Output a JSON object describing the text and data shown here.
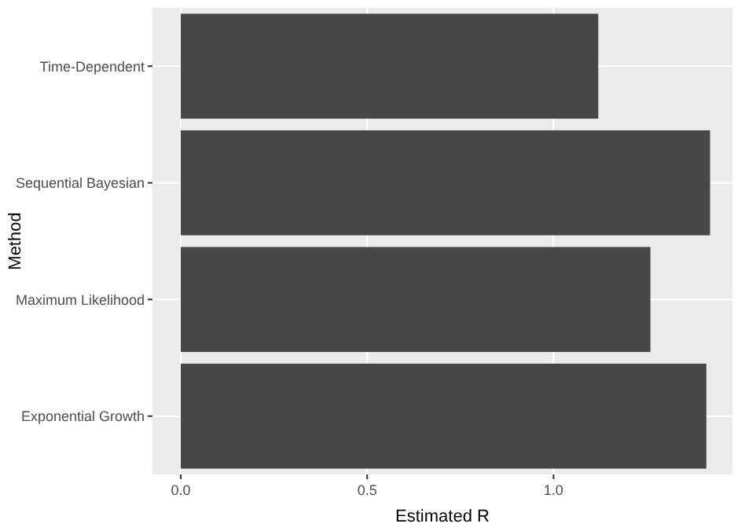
{
  "chart_data": {
    "type": "bar",
    "orientation": "horizontal",
    "xlabel": "Estimated R",
    "ylabel": "Method",
    "categories": [
      "Time-Dependent",
      "Sequential Bayesian",
      "Maximum Likelihood",
      "Exponential Growth"
    ],
    "values": [
      1.12,
      1.42,
      1.26,
      1.41
    ],
    "color": "#474747",
    "xlim": [
      -0.076,
      1.48
    ],
    "xticks": [
      {
        "value": 0,
        "label": "0.0"
      },
      {
        "value": 0.5,
        "label": "0.5"
      },
      {
        "value": 1,
        "label": "1.0"
      }
    ],
    "grid": true
  }
}
